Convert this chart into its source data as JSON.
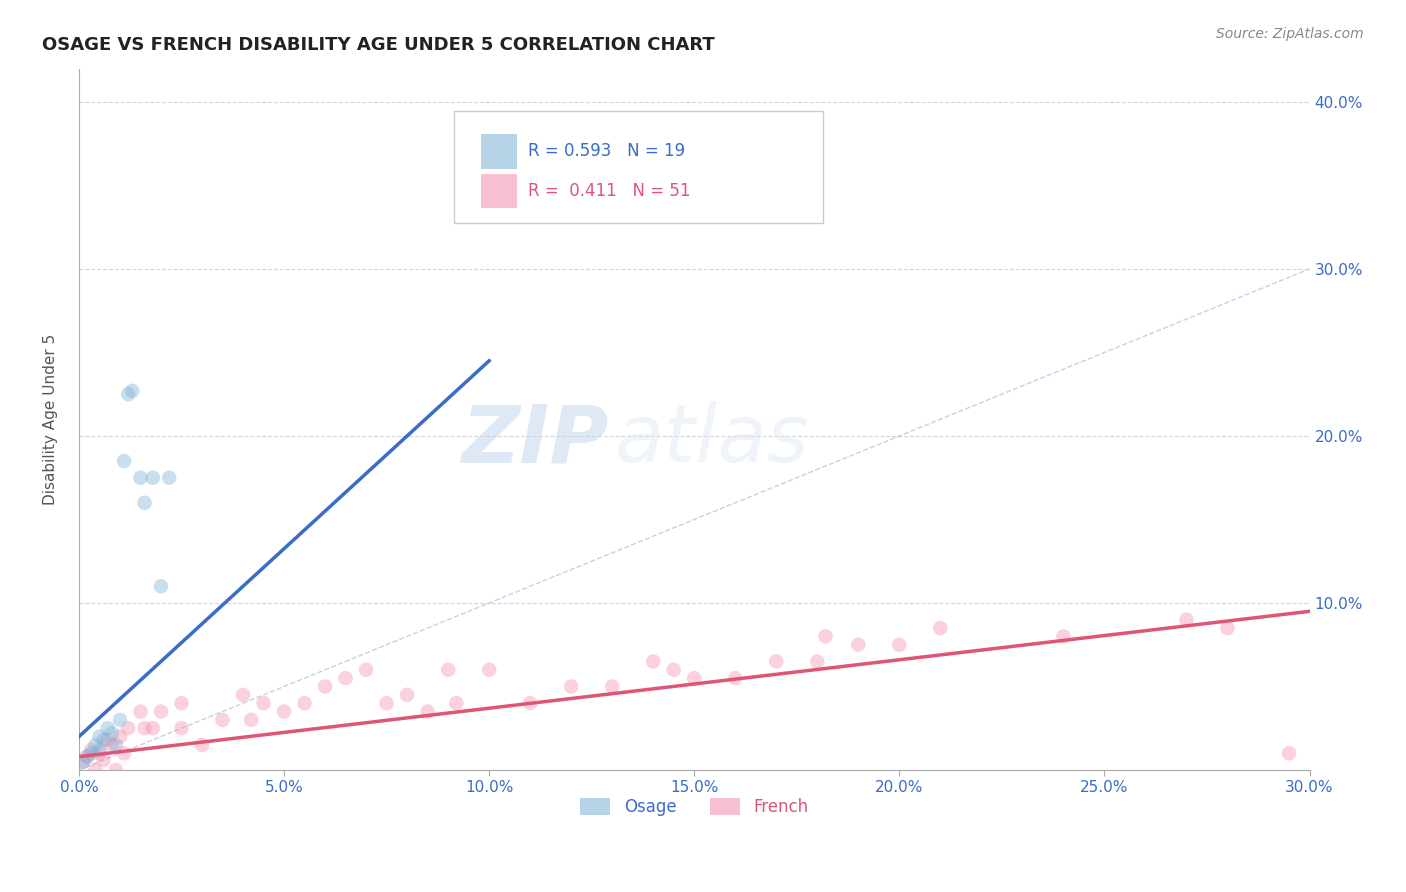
{
  "title": "OSAGE VS FRENCH DISABILITY AGE UNDER 5 CORRELATION CHART",
  "source": "Source: ZipAtlas.com",
  "ylabel": "Disability Age Under 5",
  "xlim": [
    0.0,
    0.3
  ],
  "ylim": [
    0.0,
    0.42
  ],
  "xticks": [
    0.0,
    0.05,
    0.1,
    0.15,
    0.2,
    0.25,
    0.3
  ],
  "yticks": [
    0.0,
    0.1,
    0.2,
    0.3,
    0.4
  ],
  "background_color": "#ffffff",
  "grid_color": "#cccccc",
  "watermark_zip": "ZIP",
  "watermark_atlas": "atlas",
  "legend_R_osage": "0.593",
  "legend_N_osage": "19",
  "legend_R_french": "0.411",
  "legend_N_french": "51",
  "osage_color": "#7bafd4",
  "french_color": "#f48caa",
  "trendline_osage_color": "#3a6cc8",
  "trendline_french_color": "#e05575",
  "diagonal_color": "#b0c8e8",
  "osage_x": [
    0.001,
    0.002,
    0.003,
    0.004,
    0.005,
    0.005,
    0.006,
    0.007,
    0.008,
    0.009,
    0.01,
    0.011,
    0.012,
    0.013,
    0.015,
    0.016,
    0.018,
    0.02,
    0.022
  ],
  "osage_y": [
    0.005,
    0.008,
    0.01,
    0.015,
    0.02,
    0.012,
    0.018,
    0.025,
    0.022,
    0.015,
    0.03,
    0.185,
    0.225,
    0.227,
    0.175,
    0.16,
    0.175,
    0.11,
    0.175
  ],
  "french_x": [
    0.001,
    0.002,
    0.003,
    0.004,
    0.005,
    0.006,
    0.007,
    0.008,
    0.009,
    0.01,
    0.011,
    0.012,
    0.015,
    0.016,
    0.018,
    0.02,
    0.025,
    0.025,
    0.03,
    0.035,
    0.04,
    0.042,
    0.045,
    0.05,
    0.055,
    0.06,
    0.065,
    0.07,
    0.075,
    0.08,
    0.085,
    0.09,
    0.092,
    0.1,
    0.11,
    0.12,
    0.13,
    0.14,
    0.145,
    0.15,
    0.16,
    0.17,
    0.18,
    0.182,
    0.19,
    0.2,
    0.21,
    0.24,
    0.27,
    0.28,
    0.295
  ],
  "french_y": [
    0.005,
    0.008,
    0.012,
    0.0,
    0.01,
    0.006,
    0.018,
    0.015,
    0.0,
    0.02,
    0.01,
    0.025,
    0.035,
    0.025,
    0.025,
    0.035,
    0.025,
    0.04,
    0.015,
    0.03,
    0.045,
    0.03,
    0.04,
    0.035,
    0.04,
    0.05,
    0.055,
    0.06,
    0.04,
    0.045,
    0.035,
    0.06,
    0.04,
    0.06,
    0.04,
    0.05,
    0.05,
    0.065,
    0.06,
    0.055,
    0.055,
    0.065,
    0.065,
    0.08,
    0.075,
    0.075,
    0.085,
    0.08,
    0.09,
    0.085,
    0.01
  ],
  "marker_size": 110,
  "marker_alpha": 0.4,
  "trendline_osage_x0": 0.0,
  "trendline_osage_y0": 0.02,
  "trendline_osage_x1": 0.1,
  "trendline_osage_y1": 0.245,
  "trendline_french_x0": 0.0,
  "trendline_french_y0": 0.008,
  "trendline_french_x1": 0.3,
  "trendline_french_y1": 0.095
}
